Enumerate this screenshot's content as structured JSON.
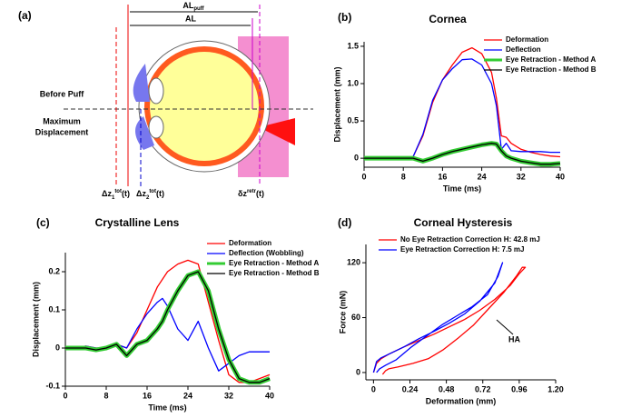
{
  "diagram": {
    "panel_label": "(a)",
    "al_puff": {
      "main": "AL",
      "sub": "puff"
    },
    "al": "AL",
    "before": "Before Puff",
    "max_lines": [
      "Maximum",
      "Displacement"
    ],
    "dz1": {
      "main": "Δz",
      "sub": "1",
      "sup": "tot",
      "tail": "(t)"
    },
    "dz2": {
      "main": "Δz",
      "sub": "2",
      "sup": "tot",
      "tail": "(t)"
    },
    "dzr": {
      "main": "δz",
      "sup": "retr",
      "tail": "(t)"
    }
  },
  "chart_data": [
    {
      "type": "line",
      "panel_label": "(b)",
      "title": "Cornea",
      "xlabel": "Time (ms)",
      "ylabel": "Displacement (mm)",
      "x": [
        0,
        2,
        4,
        6,
        8,
        10,
        12,
        14,
        16,
        18,
        20,
        22,
        24,
        26,
        27,
        28,
        29,
        30,
        32,
        34,
        36,
        38,
        40
      ],
      "xlim": [
        0,
        40
      ],
      "xticks": [
        0,
        8,
        16,
        24,
        32,
        40
      ],
      "ylim": [
        -0.12,
        1.56
      ],
      "yticks": [
        0,
        0.5,
        {
          "value": 1,
          "label": "1.0"
        },
        1.5
      ],
      "legend": "upper right",
      "series": [
        {
          "name": "Deformation",
          "color": "#ff0000",
          "width": 1.3,
          "values": [
            0,
            0,
            0,
            0,
            0,
            0.02,
            0.3,
            0.75,
            1.05,
            1.25,
            1.42,
            1.48,
            1.4,
            1.15,
            0.8,
            0.3,
            0.28,
            0.2,
            0.12,
            0.08,
            0.05,
            0.03,
            0.02
          ]
        },
        {
          "name": "Deflection",
          "color": "#0000ff",
          "width": 1.3,
          "values": [
            0,
            0,
            0,
            0,
            0,
            0.02,
            0.32,
            0.78,
            1.05,
            1.2,
            1.32,
            1.33,
            1.25,
            1.0,
            0.7,
            0.12,
            0.2,
            0.1,
            0.09,
            0.09,
            0.09,
            0.08,
            0.08
          ]
        },
        {
          "name": "Eye Retraction - Method A",
          "color": "#33cc33",
          "width": 5,
          "values": [
            0,
            0,
            0,
            0,
            0,
            0,
            -0.04,
            0.0,
            0.05,
            0.09,
            0.12,
            0.15,
            0.18,
            0.2,
            0.19,
            0.1,
            0.03,
            0.0,
            -0.04,
            -0.06,
            -0.08,
            -0.08,
            -0.07
          ]
        },
        {
          "name": "Eye Retraction - Method B",
          "color": "#000000",
          "width": 1.3,
          "values": [
            0,
            0,
            0,
            0,
            0,
            0,
            -0.04,
            0.0,
            0.05,
            0.09,
            0.12,
            0.15,
            0.18,
            0.2,
            0.19,
            0.1,
            0.03,
            0.0,
            -0.04,
            -0.06,
            -0.08,
            -0.08,
            -0.07
          ]
        }
      ]
    },
    {
      "type": "line",
      "panel_label": "(c)",
      "title": "Crystalline Lens",
      "xlabel": "Time (ms)",
      "ylabel": "Displacement (mm)",
      "x": [
        0,
        2,
        4,
        6,
        8,
        10,
        12,
        14,
        16,
        18,
        19,
        20,
        22,
        24,
        26,
        28,
        30,
        32,
        34,
        36,
        38,
        40
      ],
      "xlim": [
        0,
        40
      ],
      "xticks": [
        0,
        8,
        16,
        24,
        32,
        40
      ],
      "ylim": [
        -0.1,
        0.25
      ],
      "yticks": [
        -0.1,
        0,
        0.1,
        0.2
      ],
      "legend": "upper right",
      "series": [
        {
          "name": "Deformation",
          "color": "#ff0000",
          "width": 1.3,
          "values": [
            0,
            0,
            0.005,
            0,
            0,
            0.01,
            0,
            0.04,
            0.1,
            0.16,
            0.18,
            0.2,
            0.22,
            0.23,
            0.22,
            0.12,
            0.02,
            -0.07,
            -0.09,
            -0.09,
            -0.08,
            -0.07
          ]
        },
        {
          "name": "Deflection (Wobbling)",
          "color": "#0000ff",
          "width": 1.3,
          "values": [
            0,
            0,
            0.005,
            0,
            0,
            0.01,
            0,
            0.05,
            0.09,
            0.12,
            0.13,
            0.11,
            0.05,
            0.02,
            0.07,
            0,
            -0.06,
            -0.04,
            -0.02,
            -0.01,
            -0.01,
            -0.01
          ]
        },
        {
          "name": "Eye Retraction - Method A",
          "color": "#33cc33",
          "width": 5,
          "values": [
            0,
            0,
            0,
            -0.005,
            0,
            0.01,
            -0.02,
            0.01,
            0.02,
            0.05,
            0.07,
            0.1,
            0.15,
            0.19,
            0.2,
            0.15,
            0.05,
            -0.03,
            -0.08,
            -0.09,
            -0.09,
            -0.08
          ]
        },
        {
          "name": "Eye Retraction - Method B",
          "color": "#000000",
          "width": 1.3,
          "values": [
            0,
            0,
            0,
            -0.005,
            0,
            0.01,
            -0.02,
            0.01,
            0.02,
            0.05,
            0.07,
            0.1,
            0.15,
            0.19,
            0.2,
            0.15,
            0.05,
            -0.03,
            -0.08,
            -0.09,
            -0.09,
            -0.08
          ]
        }
      ]
    },
    {
      "type": "loop",
      "panel_label": "(d)",
      "title": "Corneal Hysteresis",
      "xlabel": "Deformation (mm)",
      "ylabel": "Force (mN)",
      "xlim": [
        -0.05,
        1.2
      ],
      "xticks": [
        0,
        0.24,
        0.48,
        0.72,
        0.96,
        {
          "value": 1.2,
          "label": "1.20"
        }
      ],
      "ylim": [
        -8,
        140
      ],
      "yticks": [
        0,
        60,
        120
      ],
      "legend": "upper left",
      "annotations": [
        {
          "text": "HA"
        }
      ],
      "series": [
        {
          "name": "No Eye Retraction Correction H: 42.8 mJ",
          "color": "#ff0000",
          "width": 1.3,
          "x": [
            0,
            0.02,
            0.05,
            0.1,
            0.2,
            0.3,
            0.4,
            0.5,
            0.6,
            0.7,
            0.8,
            0.9,
            0.96,
            1.0,
            0.98,
            0.94,
            0.86,
            0.76,
            0.66,
            0.56,
            0.46,
            0.36,
            0.26,
            0.16,
            0.1,
            0.08,
            0.06
          ],
          "values": [
            0,
            10,
            15,
            20,
            28,
            35,
            42,
            50,
            58,
            68,
            80,
            95,
            108,
            115,
            115,
            105,
            88,
            70,
            52,
            38,
            25,
            15,
            10,
            6,
            4,
            2,
            -2
          ]
        },
        {
          "name": "Eye Retraction Correction H: 7.5 mJ",
          "color": "#0000ff",
          "width": 1.3,
          "x": [
            0,
            0.02,
            0.05,
            0.1,
            0.2,
            0.3,
            0.4,
            0.5,
            0.6,
            0.7,
            0.8,
            0.85,
            0.82,
            0.75,
            0.65,
            0.55,
            0.45,
            0.35,
            0.25,
            0.15,
            0.08,
            0.04,
            0.02
          ],
          "values": [
            0,
            12,
            16,
            20,
            28,
            37,
            45,
            54,
            64,
            78,
            98,
            120,
            105,
            85,
            72,
            62,
            52,
            40,
            28,
            14,
            8,
            4,
            0
          ]
        }
      ]
    }
  ]
}
